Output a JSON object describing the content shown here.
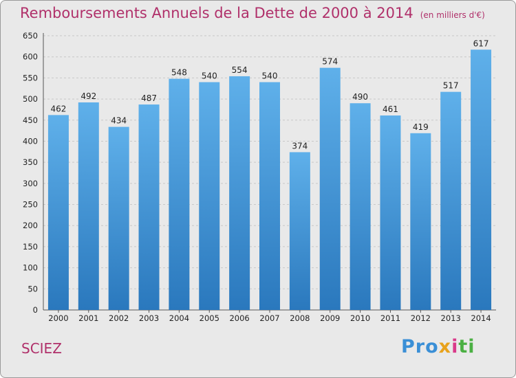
{
  "header": {
    "title": "Remboursements Annuels de la Dette de 2000 à 2014",
    "unit": "(en milliers d'€)"
  },
  "footer": {
    "commune": "SCIEZ",
    "logo_parts": [
      "Pro",
      "x",
      "i",
      "ti"
    ]
  },
  "colors": {
    "title": "#b0306a",
    "bar_top": "#5fb0ea",
    "bar_bottom": "#2a78bd",
    "background": "#e9e9e9"
  },
  "chart_data": {
    "type": "bar",
    "categories": [
      "2000",
      "2001",
      "2002",
      "2003",
      "2004",
      "2005",
      "2006",
      "2007",
      "2008",
      "2009",
      "2010",
      "2011",
      "2012",
      "2013",
      "2014"
    ],
    "values": [
      462,
      492,
      434,
      487,
      548,
      540,
      554,
      540,
      374,
      574,
      490,
      461,
      419,
      517,
      617
    ],
    "ylim": [
      0,
      650
    ],
    "yticks": [
      0,
      50,
      100,
      150,
      200,
      250,
      300,
      350,
      400,
      450,
      500,
      550,
      600,
      650
    ],
    "grid": true
  }
}
